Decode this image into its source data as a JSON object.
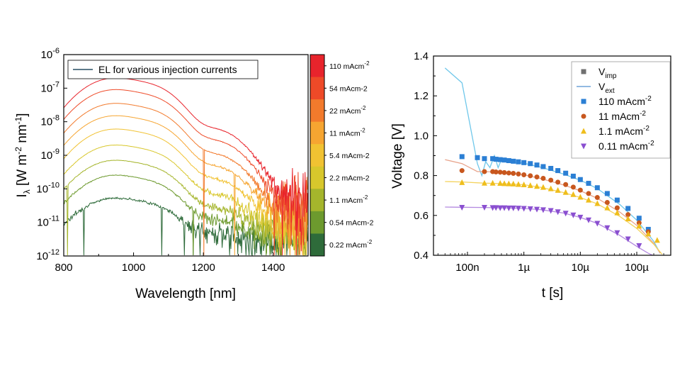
{
  "chart_data": [
    {
      "type": "line",
      "xlabel": "Wavelength [nm]",
      "ylabel": "I_λ [W m^-2 nm^-1]",
      "xlim": [
        800,
        1500
      ],
      "ylim": [
        1e-12,
        1e-06
      ],
      "yscale": "log",
      "grid": false,
      "x_ticks": [
        "800",
        "1000",
        "1200",
        "1400"
      ],
      "y_ticks": [
        {
          "base": "10",
          "exp": "-12"
        },
        {
          "base": "10",
          "exp": "-11"
        },
        {
          "base": "10",
          "exp": "-10"
        },
        {
          "base": "10",
          "exp": "-9"
        },
        {
          "base": "10",
          "exp": "-8"
        },
        {
          "base": "10",
          "exp": "-7"
        },
        {
          "base": "10",
          "exp": "-6"
        }
      ],
      "legend": {
        "label": "EL for various injection currents",
        "placement": "top-left",
        "color": "#5d7a8a"
      },
      "colorbar": {
        "labels": [
          {
            "text": "110 mAcm",
            "sup": "-2"
          },
          {
            "text": "54 mAcm-2",
            "sup": ""
          },
          {
            "text": "22 mAcm",
            "sup": "-2"
          },
          {
            "text": "11 mAcm",
            "sup": "-2"
          },
          {
            "text": "5.4 mAcm-2",
            "sup": ""
          },
          {
            "text": "2.2 mAcm-2",
            "sup": ""
          },
          {
            "text": "1.1 mAcm",
            "sup": "-2"
          },
          {
            "text": "0.54 mAcm-2",
            "sup": ""
          },
          {
            "text": "0.22 mAcm",
            "sup": "-2"
          }
        ],
        "colors": [
          "#e8242c",
          "#ee4a28",
          "#f27a2c",
          "#f6a531",
          "#f1c232",
          "#d8c72c",
          "#a5b52c",
          "#6d9a2e",
          "#2e6b3a"
        ]
      },
      "series": [
        {
          "current": "110 mAcm-2",
          "peak_x": 940,
          "peak_y": 2e-07,
          "noise_floor": 4e-11,
          "color": "#e8242c"
        },
        {
          "current": "54 mAcm-2",
          "peak_x": 940,
          "peak_y": 9e-08,
          "noise_floor": 3e-11,
          "color": "#ee4a28"
        },
        {
          "current": "22 mAcm-2",
          "peak_x": 940,
          "peak_y": 3.5e-08,
          "noise_floor": 2e-11,
          "color": "#f27a2c"
        },
        {
          "current": "11 mAcm-2",
          "peak_x": 940,
          "peak_y": 1.5e-08,
          "noise_floor": 1.5e-11,
          "color": "#f6a531"
        },
        {
          "current": "5.4 mAcm-2",
          "peak_x": 940,
          "peak_y": 6e-09,
          "noise_floor": 1e-11,
          "color": "#f1c232"
        },
        {
          "current": "2.2 mAcm-2",
          "peak_x": 940,
          "peak_y": 2e-09,
          "noise_floor": 8e-12,
          "color": "#d8c72c"
        },
        {
          "current": "1.1 mAcm-2",
          "peak_x": 940,
          "peak_y": 7e-10,
          "noise_floor": 6e-12,
          "color": "#a5b52c"
        },
        {
          "current": "0.54 mAcm-2",
          "peak_x": 940,
          "peak_y": 2.5e-10,
          "noise_floor": 4e-12,
          "color": "#6d9a2e"
        },
        {
          "current": "0.22 mAcm-2",
          "peak_x": 940,
          "peak_y": 5e-11,
          "noise_floor": 3e-12,
          "color": "#2e6b3a"
        }
      ]
    },
    {
      "type": "scatter",
      "xlabel": "t [s]",
      "ylabel": "Voltage [V]",
      "xscale": "log",
      "xlim": [
        2.5e-08,
        0.0004
      ],
      "ylim": [
        0.4,
        1.4
      ],
      "grid": false,
      "x_ticks": [
        {
          "label": "100n",
          "value": 1e-07
        },
        {
          "label": "1µ",
          "value": 1e-06
        },
        {
          "label": "10µ",
          "value": 1e-05
        },
        {
          "label": "100µ",
          "value": 0.0001
        }
      ],
      "y_ticks": [
        "0.4",
        "0.6",
        "0.8",
        "1.0",
        "1.2",
        "1.4"
      ],
      "legend": {
        "placement": "top-right",
        "entries": [
          {
            "text": "V",
            "sub": "imp",
            "sup": "",
            "marker": "square",
            "color": "#707070"
          },
          {
            "text": "V",
            "sub": "ext",
            "sup": "",
            "marker": "line",
            "color": "#6fa3d8"
          },
          {
            "text": "110 mAcm",
            "sub": "",
            "sup": "-2",
            "marker": "square",
            "color": "#2b7fd4"
          },
          {
            "text": "11 mAcm",
            "sub": "",
            "sup": "-2",
            "marker": "circle",
            "color": "#c8571e"
          },
          {
            "text": "1.1 mAcm",
            "sub": "",
            "sup": "-2",
            "marker": "triangle-up",
            "color": "#efbe1c"
          },
          {
            "text": "0.11 mAcm",
            "sub": "",
            "sup": "-2",
            "marker": "triangle-down",
            "color": "#8a4fd0"
          }
        ]
      },
      "series": [
        {
          "name": "110 mAcm-2",
          "marker": "square",
          "color": "#2b7fd4",
          "x": [
            8e-08,
            1.5e-07,
            2e-07,
            2.8e-07,
            3.2e-07,
            3.8e-07,
            4.5e-07,
            5.4e-07,
            6.5e-07,
            8e-07,
            1e-06,
            1.3e-06,
            1.7e-06,
            2.2e-06,
            3e-06,
            4e-06,
            5.5e-06,
            7.5e-06,
            1e-05,
            1.4e-05,
            2e-05,
            3e-05,
            4.5e-05,
            7e-05,
            0.00011,
            0.00016
          ],
          "y": [
            0.895,
            0.89,
            0.885,
            0.885,
            0.882,
            0.88,
            0.878,
            0.875,
            0.872,
            0.869,
            0.865,
            0.86,
            0.853,
            0.845,
            0.836,
            0.825,
            0.812,
            0.797,
            0.78,
            0.761,
            0.739,
            0.71,
            0.677,
            0.635,
            0.586,
            0.53
          ]
        },
        {
          "name": "11 mAcm-2",
          "marker": "circle",
          "color": "#c8571e",
          "x": [
            8e-08,
            2e-07,
            2.8e-07,
            3.2e-07,
            3.8e-07,
            4.5e-07,
            5.4e-07,
            6.5e-07,
            8e-07,
            1e-06,
            1.3e-06,
            1.7e-06,
            2.2e-06,
            3e-06,
            4e-06,
            5.5e-06,
            7.5e-06,
            1e-05,
            1.4e-05,
            2e-05,
            3e-05,
            4.5e-05,
            7e-05,
            0.00011,
            0.00016
          ],
          "y": [
            0.825,
            0.82,
            0.82,
            0.818,
            0.817,
            0.815,
            0.813,
            0.811,
            0.808,
            0.804,
            0.799,
            0.793,
            0.786,
            0.777,
            0.767,
            0.755,
            0.742,
            0.727,
            0.71,
            0.69,
            0.665,
            0.638,
            0.604,
            0.563,
            0.518
          ]
        },
        {
          "name": "1.1 mAcm-2",
          "marker": "triangle-up",
          "color": "#efbe1c",
          "x": [
            8e-08,
            2e-07,
            2.8e-07,
            3.8e-07,
            4.5e-07,
            5.4e-07,
            6.5e-07,
            8e-07,
            1e-06,
            1.3e-06,
            1.7e-06,
            2.2e-06,
            3e-06,
            4e-06,
            5.5e-06,
            7.5e-06,
            1e-05,
            1.4e-05,
            2e-05,
            3e-05,
            4.5e-05,
            7e-05,
            0.00011,
            0.00016,
            0.00023
          ],
          "y": [
            0.765,
            0.762,
            0.762,
            0.761,
            0.76,
            0.759,
            0.758,
            0.756,
            0.754,
            0.75,
            0.746,
            0.741,
            0.734,
            0.726,
            0.716,
            0.705,
            0.692,
            0.677,
            0.66,
            0.638,
            0.613,
            0.583,
            0.547,
            0.507,
            0.475
          ]
        },
        {
          "name": "0.11 mAcm-2",
          "marker": "triangle-down",
          "color": "#8a4fd0",
          "x": [
            8e-08,
            2e-07,
            2.8e-07,
            3.2e-07,
            3.8e-07,
            4.5e-07,
            5.4e-07,
            6.5e-07,
            8e-07,
            1e-06,
            1.3e-06,
            1.7e-06,
            2.2e-06,
            3e-06,
            4e-06,
            5.5e-06,
            7.5e-06,
            1e-05,
            1.4e-05,
            2e-05,
            3e-05,
            4.5e-05,
            7e-05,
            0.00011
          ],
          "y": [
            0.64,
            0.64,
            0.639,
            0.639,
            0.638,
            0.638,
            0.637,
            0.637,
            0.636,
            0.635,
            0.633,
            0.631,
            0.628,
            0.624,
            0.618,
            0.611,
            0.602,
            0.591,
            0.577,
            0.56,
            0.538,
            0.513,
            0.482,
            0.448
          ]
        }
      ],
      "ext_lines": [
        {
          "name": "110 mAcm-2",
          "color": "#6fc7ea",
          "x": [
            4e-08,
            8e-08,
            1.5e-07,
            1.8e-07,
            2.1e-07,
            2.5e-07,
            3e-07,
            3.5e-07,
            4e-07,
            5e-07,
            7e-07,
            1e-06,
            2e-06,
            5e-06,
            1e-05,
            2e-05,
            5e-05,
            0.0001,
            0.0002,
            0.00026
          ],
          "y": [
            1.34,
            1.265,
            0.86,
            0.8,
            0.87,
            0.84,
            0.9,
            0.84,
            0.88,
            0.87,
            0.867,
            0.862,
            0.842,
            0.808,
            0.777,
            0.735,
            0.655,
            0.576,
            0.47,
            0.41
          ]
        },
        {
          "name": "11 mAcm-2",
          "color": "#e8a48c",
          "x": [
            4e-08,
            8e-08,
            1.5e-07,
            2e-07,
            3e-07,
            5e-07,
            1e-06,
            2e-06,
            5e-06,
            1e-05,
            2e-05,
            5e-05,
            0.0001,
            0.0002,
            0.00026
          ],
          "y": [
            0.88,
            0.86,
            0.82,
            0.82,
            0.818,
            0.814,
            0.804,
            0.785,
            0.753,
            0.724,
            0.686,
            0.617,
            0.55,
            0.46,
            0.41
          ]
        },
        {
          "name": "1.1 mAcm-2",
          "color": "#f4d35e",
          "x": [
            4e-08,
            8e-08,
            2e-07,
            5e-07,
            1e-06,
            2e-06,
            5e-06,
            1e-05,
            2e-05,
            5e-05,
            0.0001,
            0.0002,
            0.00028
          ],
          "y": [
            0.77,
            0.768,
            0.762,
            0.759,
            0.754,
            0.741,
            0.715,
            0.69,
            0.658,
            0.595,
            0.535,
            0.455,
            0.405
          ]
        },
        {
          "name": "0.11 mAcm-2",
          "color": "#b48ae0",
          "x": [
            4e-08,
            8e-08,
            2e-07,
            5e-07,
            1e-06,
            2e-06,
            5e-06,
            1e-05,
            2e-05,
            5e-05,
            0.0001,
            0.00016,
            0.00023
          ],
          "y": [
            0.642,
            0.641,
            0.64,
            0.637,
            0.635,
            0.629,
            0.612,
            0.59,
            0.56,
            0.5,
            0.445,
            0.41,
            0.39
          ]
        }
      ]
    }
  ]
}
